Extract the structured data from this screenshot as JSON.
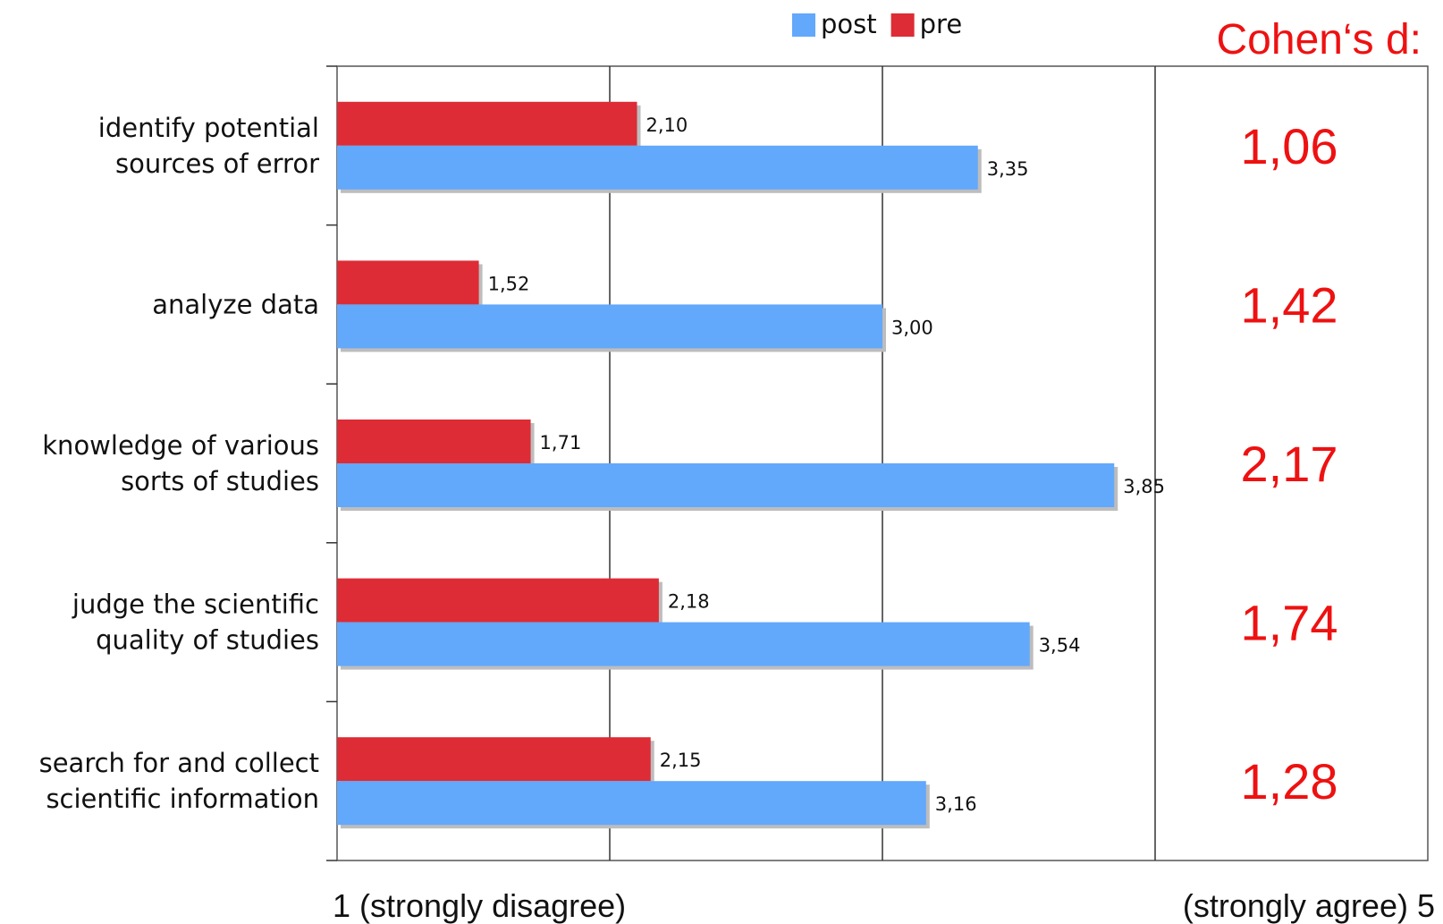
{
  "chart_data": {
    "type": "bar",
    "orientation": "horizontal",
    "categories": [
      [
        "identify potential",
        "sources of error"
      ],
      [
        "analyze data"
      ],
      [
        "knowledge of various",
        "sorts of studies"
      ],
      [
        "judge the scientific",
        "quality of studies"
      ],
      [
        "search for and collect",
        "scientific information"
      ]
    ],
    "series": [
      {
        "name": "pre",
        "color": "#dd2c35",
        "values": [
          2.1,
          1.52,
          1.71,
          2.18,
          2.15
        ],
        "labels": [
          "2,10",
          "1,52",
          "1,71",
          "2,18",
          "2,15"
        ]
      },
      {
        "name": "post",
        "color": "#62a8fb",
        "values": [
          3.35,
          3.0,
          3.85,
          3.54,
          3.16
        ],
        "labels": [
          "3,35",
          "3,00",
          "3,85",
          "3,54",
          "3,16"
        ]
      }
    ],
    "legend": [
      {
        "name": "post",
        "color": "#62a8fb"
      },
      {
        "name": "pre",
        "color": "#dd2c35"
      }
    ],
    "legend_position": "top",
    "xlim": [
      1,
      5
    ],
    "x_axis_end_labels": {
      "min": "1 (strongly disagree)",
      "max": "(strongly agree) 5"
    },
    "grid": true,
    "cohens_d": {
      "title": "Cohen‘s d:",
      "values": [
        "1,06",
        "1,42",
        "2,17",
        "1,74",
        "1,28"
      ]
    }
  }
}
